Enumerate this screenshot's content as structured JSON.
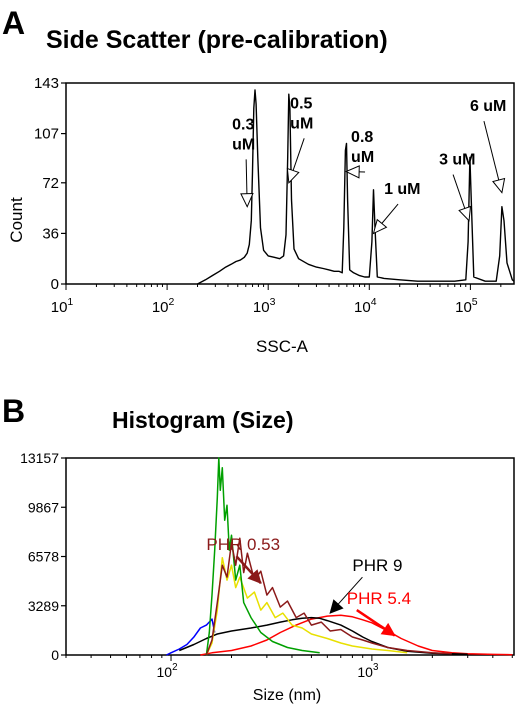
{
  "panel_labels": {
    "a": "A",
    "b": "B"
  },
  "chart_data": [
    {
      "type": "line",
      "title": "Side Scatter (pre-calibration)",
      "xlabel": "SSC-A",
      "ylabel": "Count",
      "xscale": "log",
      "xlim": [
        10,
        270000
      ],
      "ylim": [
        0,
        143
      ],
      "yticks": [
        0,
        36,
        72,
        107,
        143
      ],
      "xtick_labels": [
        {
          "base": "10",
          "exp": "1"
        },
        {
          "base": "10",
          "exp": "2"
        },
        {
          "base": "10",
          "exp": "3"
        },
        {
          "base": "10",
          "exp": "4"
        },
        {
          "base": "10",
          "exp": "5"
        }
      ],
      "grid": false,
      "series": [
        {
          "color": "#000000",
          "points": [
            [
              200,
              0
            ],
            [
              240,
              3
            ],
            [
              280,
              6
            ],
            [
              330,
              9
            ],
            [
              380,
              12
            ],
            [
              430,
              14
            ],
            [
              480,
              16
            ],
            [
              530,
              17
            ],
            [
              580,
              19
            ],
            [
              620,
              22
            ],
            [
              650,
              28
            ],
            [
              680,
              45
            ],
            [
              700,
              80
            ],
            [
              720,
              125
            ],
            [
              740,
              138
            ],
            [
              760,
              128
            ],
            [
              790,
              90
            ],
            [
              840,
              40
            ],
            [
              900,
              24
            ],
            [
              1000,
              20
            ],
            [
              1150,
              19
            ],
            [
              1300,
              18
            ],
            [
              1420,
              20
            ],
            [
              1500,
              35
            ],
            [
              1560,
              90
            ],
            [
              1600,
              135
            ],
            [
              1640,
              125
            ],
            [
              1700,
              60
            ],
            [
              1800,
              25
            ],
            [
              2000,
              18
            ],
            [
              2500,
              14
            ],
            [
              3000,
              12
            ],
            [
              3500,
              11
            ],
            [
              4000,
              10
            ],
            [
              4500,
              9
            ],
            [
              5000,
              9
            ],
            [
              5400,
              8
            ],
            [
              5600,
              40
            ],
            [
              5800,
              95
            ],
            [
              5950,
              100
            ],
            [
              6100,
              60
            ],
            [
              6400,
              10
            ],
            [
              7000,
              8
            ],
            [
              8000,
              6
            ],
            [
              9000,
              5
            ],
            [
              10000,
              5
            ],
            [
              10600,
              30
            ],
            [
              11000,
              67
            ],
            [
              11400,
              40
            ],
            [
              12000,
              5
            ],
            [
              14000,
              4
            ],
            [
              20000,
              3
            ],
            [
              30000,
              2
            ],
            [
              50000,
              2
            ],
            [
              70000,
              2
            ],
            [
              90000,
              3
            ],
            [
              95000,
              30
            ],
            [
              99000,
              90
            ],
            [
              103000,
              50
            ],
            [
              108000,
              5
            ],
            [
              140000,
              2
            ],
            [
              180000,
              2
            ],
            [
              195000,
              20
            ],
            [
              205000,
              55
            ],
            [
              215000,
              45
            ],
            [
              230000,
              15
            ],
            [
              260000,
              3
            ],
            [
              270000,
              2
            ]
          ]
        }
      ],
      "annotations": [
        {
          "text": [
            "0.3",
            "uM"
          ],
          "x": 440,
          "y": 110
        },
        {
          "text": [
            "0.5",
            "uM"
          ],
          "x": 1650,
          "y": 125
        },
        {
          "text": [
            "0.8",
            "uM"
          ],
          "x": 6600,
          "y": 101
        },
        {
          "text": [
            "1 uM"
          ],
          "x": 14000,
          "y": 64
        },
        {
          "text": [
            "3 uM"
          ],
          "x": 49000,
          "y": 85
        },
        {
          "text": [
            "6 uM"
          ],
          "x": 99000,
          "y": 123
        }
      ]
    },
    {
      "type": "line",
      "title": "Histogram (Size)",
      "xlabel": "Size (nm)",
      "xscale": "log",
      "xlim": [
        30,
        5100
      ],
      "ylim": [
        0,
        13157
      ],
      "yticks": [
        0,
        3289,
        6578,
        9867,
        13157
      ],
      "xtick_labels": [
        {
          "base": "10",
          "exp": "2"
        },
        {
          "base": "10",
          "exp": "3"
        }
      ],
      "grid": false,
      "series": [
        {
          "color": "#0000ff",
          "points": [
            [
              95,
              0
            ],
            [
              100,
              150
            ],
            [
              110,
              400
            ],
            [
              120,
              700
            ],
            [
              130,
              1200
            ],
            [
              140,
              1800
            ],
            [
              150,
              2000
            ],
            [
              160,
              2400
            ],
            [
              165,
              1500
            ]
          ]
        },
        {
          "name": "PHR 5.4",
          "color": "#ff0000",
          "points": [
            [
              140,
              0
            ],
            [
              160,
              150
            ],
            [
              200,
              300
            ],
            [
              250,
              600
            ],
            [
              300,
              1000
            ],
            [
              350,
              1500
            ],
            [
              420,
              2000
            ],
            [
              500,
              2400
            ],
            [
              600,
              2600
            ],
            [
              700,
              2650
            ],
            [
              800,
              2550
            ],
            [
              900,
              2350
            ],
            [
              1000,
              2150
            ],
            [
              1200,
              1600
            ],
            [
              1400,
              1100
            ],
            [
              1700,
              600
            ],
            [
              2000,
              300
            ],
            [
              2500,
              150
            ],
            [
              3000,
              80
            ],
            [
              4000,
              40
            ],
            [
              5000,
              20
            ]
          ]
        },
        {
          "name": "PHR 9",
          "color": "#000000",
          "points": [
            [
              110,
              300
            ],
            [
              130,
              700
            ],
            [
              150,
              1100
            ],
            [
              170,
              1400
            ],
            [
              200,
              1600
            ],
            [
              250,
              1800
            ],
            [
              300,
              2000
            ],
            [
              350,
              2200
            ],
            [
              400,
              2350
            ],
            [
              450,
              2450
            ],
            [
              500,
              2500
            ],
            [
              550,
              2450
            ],
            [
              600,
              2300
            ],
            [
              700,
              2000
            ],
            [
              800,
              1600
            ],
            [
              900,
              1200
            ],
            [
              1000,
              900
            ],
            [
              1200,
              500
            ],
            [
              1500,
              250
            ],
            [
              2000,
              120
            ],
            [
              3000,
              50
            ]
          ]
        },
        {
          "color": "#e8e000",
          "points": [
            [
              150,
              0
            ],
            [
              160,
              800
            ],
            [
              170,
              3000
            ],
            [
              180,
              6500
            ],
            [
              190,
              5000
            ],
            [
              200,
              6000
            ],
            [
              210,
              4500
            ],
            [
              220,
              5200
            ],
            [
              240,
              3800
            ],
            [
              260,
              4200
            ],
            [
              280,
              3000
            ],
            [
              300,
              3500
            ],
            [
              330,
              2500
            ],
            [
              360,
              2800
            ],
            [
              400,
              2000
            ],
            [
              450,
              1800
            ],
            [
              500,
              1400
            ],
            [
              600,
              1100
            ],
            [
              700,
              800
            ],
            [
              800,
              600
            ],
            [
              1000,
              400
            ],
            [
              1200,
              300
            ],
            [
              1500,
              150
            ]
          ]
        },
        {
          "color": "#00a000",
          "points": [
            [
              150,
              0
            ],
            [
              155,
              1500
            ],
            [
              160,
              4000
            ],
            [
              165,
              7000
            ],
            [
              170,
              10500
            ],
            [
              173,
              13157
            ],
            [
              176,
              11000
            ],
            [
              180,
              12500
            ],
            [
              185,
              9000
            ],
            [
              190,
              10000
            ],
            [
              195,
              7000
            ],
            [
              200,
              8000
            ],
            [
              210,
              5000
            ],
            [
              220,
              6000
            ],
            [
              230,
              3500
            ],
            [
              250,
              2500
            ],
            [
              280,
              1500
            ],
            [
              320,
              900
            ],
            [
              380,
              500
            ],
            [
              450,
              300
            ],
            [
              550,
              150
            ]
          ]
        },
        {
          "name": "PHR 0.53",
          "color": "#8b1a1a",
          "points": [
            [
              150,
              0
            ],
            [
              160,
              1000
            ],
            [
              170,
              3500
            ],
            [
              180,
              6000
            ],
            [
              190,
              5200
            ],
            [
              200,
              7500
            ],
            [
              210,
              6000
            ],
            [
              220,
              7800
            ],
            [
              230,
              5500
            ],
            [
              240,
              6800
            ],
            [
              260,
              5000
            ],
            [
              280,
              5600
            ],
            [
              300,
              4000
            ],
            [
              320,
              4500
            ],
            [
              350,
              3200
            ],
            [
              380,
              3600
            ],
            [
              420,
              2500
            ],
            [
              460,
              2800
            ],
            [
              500,
              2000
            ],
            [
              560,
              2200
            ],
            [
              620,
              1600
            ],
            [
              700,
              1700
            ],
            [
              800,
              1200
            ],
            [
              900,
              1000
            ],
            [
              1000,
              800
            ],
            [
              1200,
              500
            ],
            [
              1500,
              300
            ],
            [
              2000,
              150
            ],
            [
              2500,
              80
            ]
          ]
        }
      ],
      "annotations": [
        {
          "text": [
            "PHR 0.53"
          ],
          "x": 150,
          "y": 7000,
          "color": "#8b1a1a"
        },
        {
          "text": [
            "PHR 9"
          ],
          "x": 800,
          "y": 5600,
          "color": "#000000"
        },
        {
          "text": [
            "PHR 5.4"
          ],
          "x": 750,
          "y": 3400,
          "color": "#ff0000"
        }
      ]
    }
  ]
}
